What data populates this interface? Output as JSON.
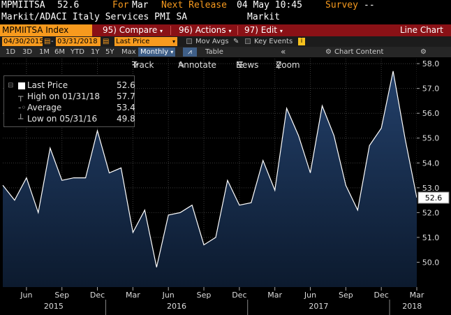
{
  "header": {
    "ticker": "MPMIITSA",
    "price": "52.6",
    "for_label": "For",
    "for_month": "Mar",
    "next_release_label": "Next Release",
    "next_release": "04 May 10:45",
    "survey_label": "Survey",
    "survey_value": "--",
    "name": "Markit/ADACI Italy Services PMI SA",
    "source": "Markit"
  },
  "menubar": {
    "ticker_label": "MPMIITSA Index",
    "compare": "95) Compare",
    "actions": "96) Actions",
    "edit": "97) Edit",
    "line_chart": "Line Chart"
  },
  "datebar": {
    "start": "04/30/2015",
    "end": "03/31/2018",
    "field": "Last Price",
    "mov_avgs": "Mov Avgs",
    "key_events": "Key Events"
  },
  "tabs": [
    "1D",
    "3D",
    "1M",
    "6M",
    "YTD",
    "1Y",
    "5Y",
    "Max"
  ],
  "period": "Monthly",
  "table_label": "Table",
  "chart_content": "Chart Content",
  "toolbar": {
    "track": "Track",
    "annotate": "Annotate",
    "news": "News",
    "zoom": "Zoom"
  },
  "legend": {
    "last_label": "Last Price",
    "last_value": "52.6",
    "high_label": "High on 01/31/18",
    "high_value": "57.7",
    "avg_label": "Average",
    "avg_value": "53.4",
    "low_label": "Low on 05/31/16",
    "low_value": "49.8"
  },
  "colors": {
    "accent": "#f79a1e",
    "menubar": "#8a1116",
    "area_top": "#23406a",
    "area_bottom": "#0c1a2e",
    "line": "#ffffff"
  },
  "chart_data": {
    "type": "area",
    "x": [
      "2015-04",
      "2015-05",
      "2015-06",
      "2015-07",
      "2015-08",
      "2015-09",
      "2015-10",
      "2015-11",
      "2015-12",
      "2016-01",
      "2016-02",
      "2016-03",
      "2016-04",
      "2016-05",
      "2016-06",
      "2016-07",
      "2016-08",
      "2016-09",
      "2016-10",
      "2016-11",
      "2016-12",
      "2017-01",
      "2017-02",
      "2017-03",
      "2017-04",
      "2017-05",
      "2017-06",
      "2017-07",
      "2017-08",
      "2017-09",
      "2017-10",
      "2017-11",
      "2017-12",
      "2018-01",
      "2018-02",
      "2018-03"
    ],
    "values": [
      53.1,
      52.5,
      53.4,
      52.0,
      54.6,
      53.3,
      53.4,
      53.4,
      55.3,
      53.6,
      53.8,
      51.2,
      52.1,
      49.8,
      51.9,
      52.0,
      52.3,
      50.7,
      51.0,
      53.3,
      52.3,
      52.4,
      54.1,
      52.9,
      56.2,
      55.1,
      53.6,
      56.3,
      55.1,
      53.1,
      52.1,
      54.7,
      55.4,
      57.7,
      55.0,
      52.6
    ],
    "ylim": [
      49.0,
      58.2
    ],
    "yticks": [
      "58.0",
      "57.0",
      "56.0",
      "55.0",
      "54.0",
      "53.0",
      "52.0",
      "51.0",
      "50.0"
    ],
    "month_labels": [
      "Jun",
      "Sep",
      "Dec",
      "Mar",
      "Jun",
      "Sep",
      "Dec",
      "Mar",
      "Jun",
      "Sep",
      "Dec",
      "Mar"
    ],
    "years": [
      "2015",
      "2016",
      "2017",
      "2018"
    ],
    "last_value_label": "52.6",
    "grid": true
  }
}
